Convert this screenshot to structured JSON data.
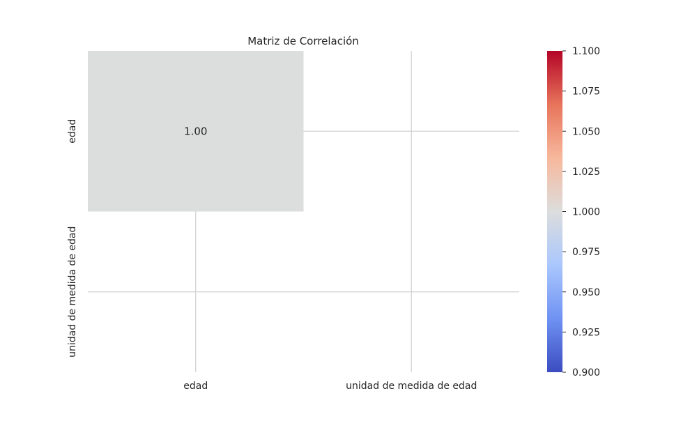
{
  "chart_data": {
    "type": "heatmap",
    "title": "Matriz de Correlación",
    "x_categories": [
      "edad",
      "unidad de medida de edad"
    ],
    "y_categories": [
      "edad",
      "unidad de medida de edad"
    ],
    "values": [
      [
        1.0,
        null
      ],
      [
        null,
        null
      ]
    ],
    "cell_labels": [
      [
        "1.00",
        ""
      ],
      [
        "",
        ""
      ]
    ],
    "grid": true,
    "colormap": "coolwarm",
    "cell_colors": [
      [
        "#dcdddd",
        null
      ],
      [
        null,
        null
      ]
    ],
    "colorbar": {
      "range": [
        0.9,
        1.1
      ],
      "ticks": [
        "0.900",
        "0.925",
        "0.950",
        "0.975",
        "1.000",
        "1.025",
        "1.050",
        "1.075",
        "1.100"
      ],
      "colors": [
        "#3b4cc0",
        "#6f92f3",
        "#aac7fd",
        "#dcdddd",
        "#f7b89c",
        "#e7745b",
        "#b40426"
      ]
    }
  }
}
